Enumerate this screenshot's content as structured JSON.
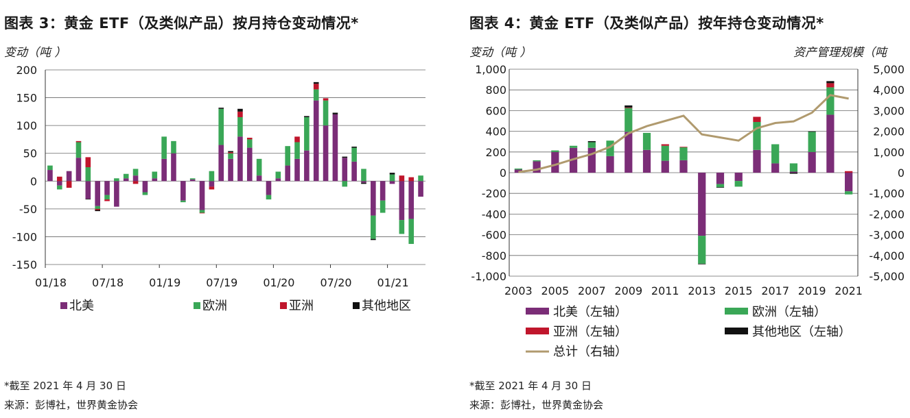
{
  "left": {
    "title": "图表 3：黄金 ETF（及类似产品）按月持仓变动情况*",
    "ylabel": "变动（吨 ）",
    "note": "*截至 2021 年 4 月 30 日",
    "source": "来源：彭博社，世界黄金协会"
  },
  "right": {
    "title": "图表 4：黄金 ETF（及类似产品）按年持仓变动情况*",
    "ylabel": "变动（吨 ）",
    "y2label": "资产管理规模（吨",
    "note": "*截至 2021 年 4 月 30 日",
    "source": "来源：彭博社，世界黄金协会"
  },
  "colors": {
    "north_america": "#7b2d77",
    "europe": "#3aa757",
    "asia": "#c0162c",
    "other": "#111111",
    "total": "#b09a6e",
    "grid": "#666666"
  },
  "chart_data": [
    {
      "type": "bar",
      "stacked": true,
      "ylim": [
        -150,
        200
      ],
      "yticks": [
        -150,
        -100,
        -50,
        0,
        50,
        100,
        150,
        200
      ],
      "x_tick_labels": [
        "01/18",
        "07/18",
        "01/19",
        "07/19",
        "01/20",
        "07/20",
        "01/21"
      ],
      "x_tick_positions": [
        0,
        6,
        12,
        18,
        24,
        30,
        36
      ],
      "months": [
        "2018-01",
        "2018-02",
        "2018-03",
        "2018-04",
        "2018-05",
        "2018-06",
        "2018-07",
        "2018-08",
        "2018-09",
        "2018-10",
        "2018-11",
        "2018-12",
        "2019-01",
        "2019-02",
        "2019-03",
        "2019-04",
        "2019-05",
        "2019-06",
        "2019-07",
        "2019-08",
        "2019-09",
        "2019-10",
        "2019-11",
        "2019-12",
        "2020-01",
        "2020-02",
        "2020-03",
        "2020-04",
        "2020-05",
        "2020-06",
        "2020-07",
        "2020-08",
        "2020-09",
        "2020-10",
        "2020-11",
        "2020-12",
        "2021-01",
        "2021-02",
        "2021-03",
        "2021-04"
      ],
      "series": [
        {
          "name": "北美",
          "values": [
            20,
            -8,
            18,
            42,
            -32,
            -45,
            -25,
            -46,
            5,
            10,
            -20,
            5,
            40,
            50,
            -35,
            3,
            -52,
            -10,
            65,
            40,
            80,
            60,
            10,
            -25,
            5,
            28,
            40,
            55,
            145,
            100,
            120,
            42,
            35,
            -3,
            -62,
            -35,
            -5,
            -70,
            -68,
            -28
          ]
        },
        {
          "name": "欧洲",
          "values": [
            8,
            -7,
            0,
            28,
            25,
            -5,
            -8,
            5,
            8,
            12,
            -5,
            12,
            40,
            22,
            -3,
            2,
            -5,
            18,
            65,
            10,
            35,
            15,
            30,
            -8,
            12,
            35,
            30,
            60,
            20,
            45,
            0,
            -10,
            25,
            22,
            -42,
            -22,
            12,
            -25,
            -45,
            10
          ]
        },
        {
          "name": "亚洲",
          "values": [
            0,
            8,
            -12,
            2,
            18,
            -2,
            -3,
            0,
            0,
            -5,
            0,
            0,
            0,
            0,
            0,
            0,
            -1,
            -5,
            0,
            2,
            10,
            3,
            0,
            0,
            0,
            0,
            10,
            0,
            10,
            4,
            0,
            0,
            0,
            0,
            0,
            0,
            0,
            10,
            7,
            0
          ]
        },
        {
          "name": "其他地区",
          "values": [
            0,
            0,
            0,
            0,
            -1,
            -2,
            0,
            0,
            0,
            0,
            0,
            0,
            0,
            0,
            0,
            0,
            0,
            0,
            2,
            2,
            5,
            0,
            0,
            0,
            0,
            0,
            0,
            2,
            3,
            0,
            3,
            2,
            2,
            -2,
            -2,
            0,
            3,
            0,
            0,
            0
          ]
        }
      ]
    },
    {
      "type": "bar",
      "stacked": true,
      "ylim": [
        -1000,
        1000
      ],
      "yticks": [
        -1000,
        -800,
        -600,
        -400,
        -200,
        0,
        200,
        400,
        600,
        800,
        1000
      ],
      "y2lim": [
        -5000,
        5000
      ],
      "y2ticks": [
        -5000,
        -4000,
        -3000,
        -2000,
        -1000,
        0,
        1000,
        2000,
        3000,
        4000,
        5000
      ],
      "categories": [
        2003,
        2004,
        2005,
        2006,
        2007,
        2008,
        2009,
        2010,
        2011,
        2012,
        2013,
        2014,
        2015,
        2016,
        2017,
        2018,
        2019,
        2020,
        2021
      ],
      "x_tick_labels": [
        "2003",
        "2005",
        "2007",
        "2009",
        "2011",
        "2013",
        "2015",
        "2017",
        "2019",
        "2021"
      ],
      "series": [
        {
          "name": "北美（左轴）",
          "values": [
            30,
            110,
            200,
            240,
            240,
            160,
            395,
            220,
            115,
            120,
            -610,
            -110,
            -80,
            220,
            90,
            10,
            200,
            560,
            -180
          ]
        },
        {
          "name": "欧洲（左轴）",
          "values": [
            10,
            10,
            15,
            20,
            55,
            150,
            230,
            165,
            145,
            125,
            -270,
            -30,
            -55,
            270,
            185,
            80,
            195,
            265,
            -30
          ]
        },
        {
          "name": "亚洲（左轴）",
          "values": [
            0,
            0,
            0,
            0,
            0,
            0,
            5,
            0,
            15,
            5,
            0,
            0,
            0,
            50,
            0,
            0,
            0,
            40,
            15
          ]
        },
        {
          "name": "其他地区（左轴）",
          "values": [
            0,
            0,
            0,
            0,
            10,
            0,
            20,
            0,
            0,
            0,
            -5,
            -5,
            0,
            0,
            0,
            -10,
            5,
            20,
            0
          ]
        }
      ],
      "line": {
        "name": "总计（右轴）",
        "values": [
          30,
          150,
          380,
          650,
          900,
          1250,
          1900,
          2250,
          2500,
          2750,
          1850,
          1700,
          1550,
          2150,
          2400,
          2480,
          2900,
          3750,
          3580
        ]
      }
    }
  ]
}
